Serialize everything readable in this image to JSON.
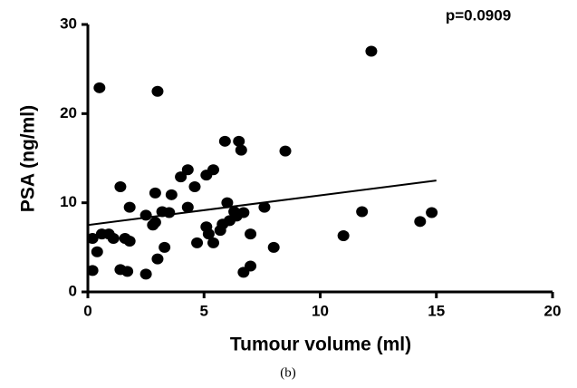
{
  "chart_data": {
    "type": "scatter",
    "x_label": "Tumour volume (ml)",
    "y_label": "PSA (ng/ml)",
    "annotation": "p=0.0909",
    "caption": "(b)",
    "xlim": [
      0,
      20
    ],
    "xticks": [
      0,
      5,
      10,
      15,
      20
    ],
    "ylim": [
      0,
      30
    ],
    "yticks": [
      0,
      10,
      20,
      30
    ],
    "color": "#000000",
    "x": [
      0.5,
      3.0,
      12.2,
      5.9,
      6.5,
      6.6,
      8.5,
      5.4,
      5.1,
      4.3,
      4.0,
      4.6,
      1.4,
      2.9,
      3.6,
      1.8,
      4.3,
      6.0,
      3.2,
      3.5,
      2.5,
      2.9,
      2.8,
      5.1,
      5.8,
      6.1,
      6.4,
      6.7,
      7.6,
      6.3,
      0.2,
      0.6,
      1.1,
      1.6,
      0.9,
      0.4,
      1.8,
      3.3,
      4.7,
      5.4,
      5.2,
      5.7,
      7.0,
      8.0,
      3.0,
      0.2,
      1.4,
      1.7,
      2.5,
      6.7,
      7.0,
      11.0,
      11.8,
      14.3,
      14.8
    ],
    "y": [
      22.9,
      22.5,
      27.0,
      16.9,
      16.9,
      15.9,
      15.8,
      13.7,
      13.1,
      13.7,
      12.9,
      11.8,
      11.8,
      11.1,
      10.9,
      9.5,
      9.5,
      10.0,
      9.0,
      8.9,
      8.6,
      7.8,
      7.5,
      7.3,
      7.6,
      8.0,
      8.5,
      8.9,
      9.5,
      9.0,
      6.0,
      6.5,
      6.0,
      6.0,
      6.5,
      4.5,
      5.7,
      5.0,
      5.5,
      5.5,
      6.5,
      6.9,
      6.5,
      5.0,
      3.7,
      2.4,
      2.5,
      2.3,
      2.0,
      2.2,
      2.9,
      6.3,
      9.0,
      7.9,
      8.9
    ],
    "trendline": {
      "x": [
        0,
        15
      ],
      "y": [
        7.5,
        12.5
      ]
    }
  }
}
